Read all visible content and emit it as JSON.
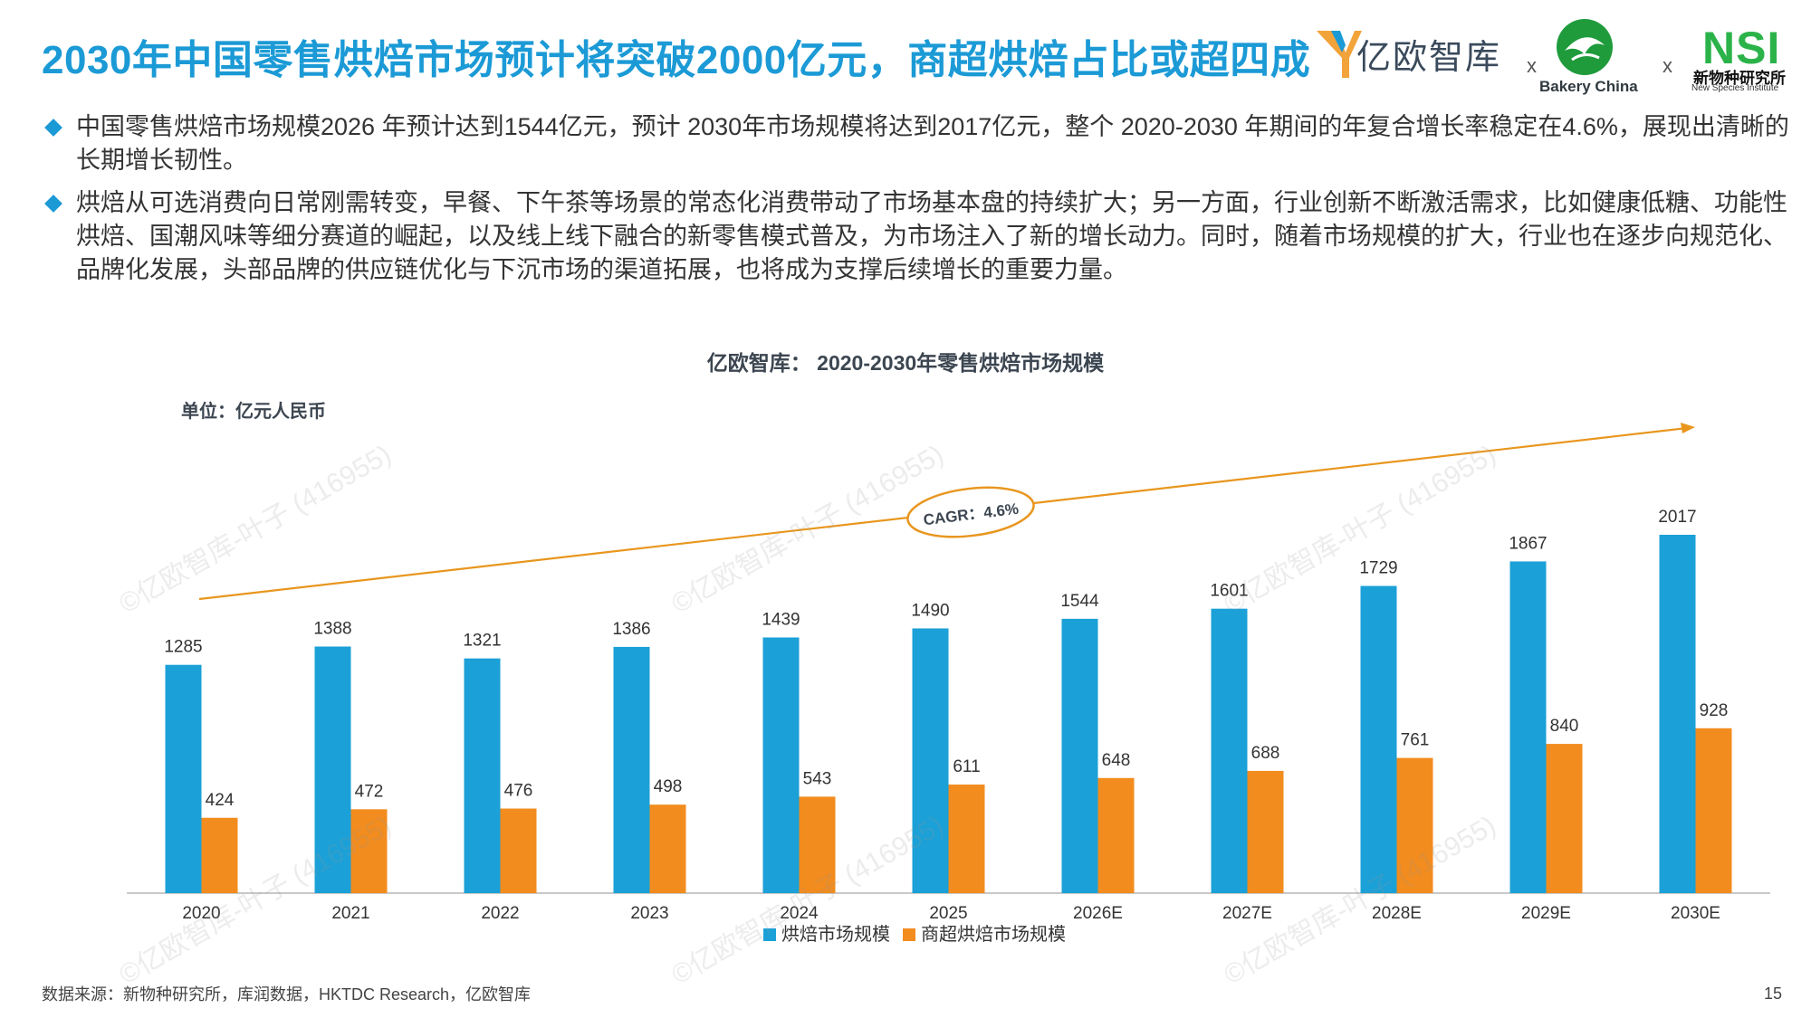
{
  "title": "2030年中国零售烘焙市场预计将突破2000亿元，商超烘焙占比或超四成",
  "logos": {
    "yiou": "亿欧智库",
    "separator": "x",
    "bakery": "Bakery China",
    "nsi": "NSI",
    "nsi_cn": "新物种研究所",
    "nsi_en": "New Species Institute"
  },
  "bullets": [
    "中国零售烘焙市场规模2026 年预计达到1544亿元，预计 2030年市场规模将达到2017亿元，整个 2020-2030 年期间的年复合增长率稳定在4.6%，展现出清晰的长期增长韧性。",
    "烘焙从可选消费向日常刚需转变，早餐、下午茶等场景的常态化消费带动了市场基本盘的持续扩大；另一方面，行业创新不断激活需求，比如健康低糖、功能性烘焙、国潮风味等细分赛道的崛起，以及线上线下融合的新零售模式普及，为市场注入了新的增长动力。同时，随着市场规模的扩大，行业也在逐步向规范化、品牌化发展，头部品牌的供应链优化与下沉市场的渠道拓展，也将成为支撑后续增长的重要力量。"
  ],
  "source": "数据来源：新物种研究所，库润数据，HKTDC Research，亿欧智库",
  "page_number": "15",
  "watermark": "©亿欧智库-叶子 (416955)",
  "colors": {
    "title": "#1b9ad6",
    "series1": "#1ba0d7",
    "series2": "#f28c1e",
    "trend": "#e8961e"
  },
  "chart_data": {
    "type": "bar",
    "title": "亿欧智库： 2020-2030年零售烘焙市场规模",
    "unit_label": "单位：亿元人民币",
    "categories": [
      "2020",
      "2021",
      "2022",
      "2023",
      "2024",
      "2025",
      "2026E",
      "2027E",
      "2028E",
      "2029E",
      "2030E"
    ],
    "series": [
      {
        "name": "烘焙市场规模",
        "values": [
          1285,
          1388,
          1321,
          1386,
          1439,
          1490,
          1544,
          1601,
          1729,
          1867,
          2017
        ]
      },
      {
        "name": "商超烘焙市场规模",
        "values": [
          424,
          472,
          476,
          498,
          543,
          611,
          648,
          688,
          761,
          840,
          928
        ]
      }
    ],
    "ylim": [
      0,
      2017
    ],
    "annotation": "CAGR：4.6%",
    "legend_position": "bottom",
    "grid": false
  }
}
